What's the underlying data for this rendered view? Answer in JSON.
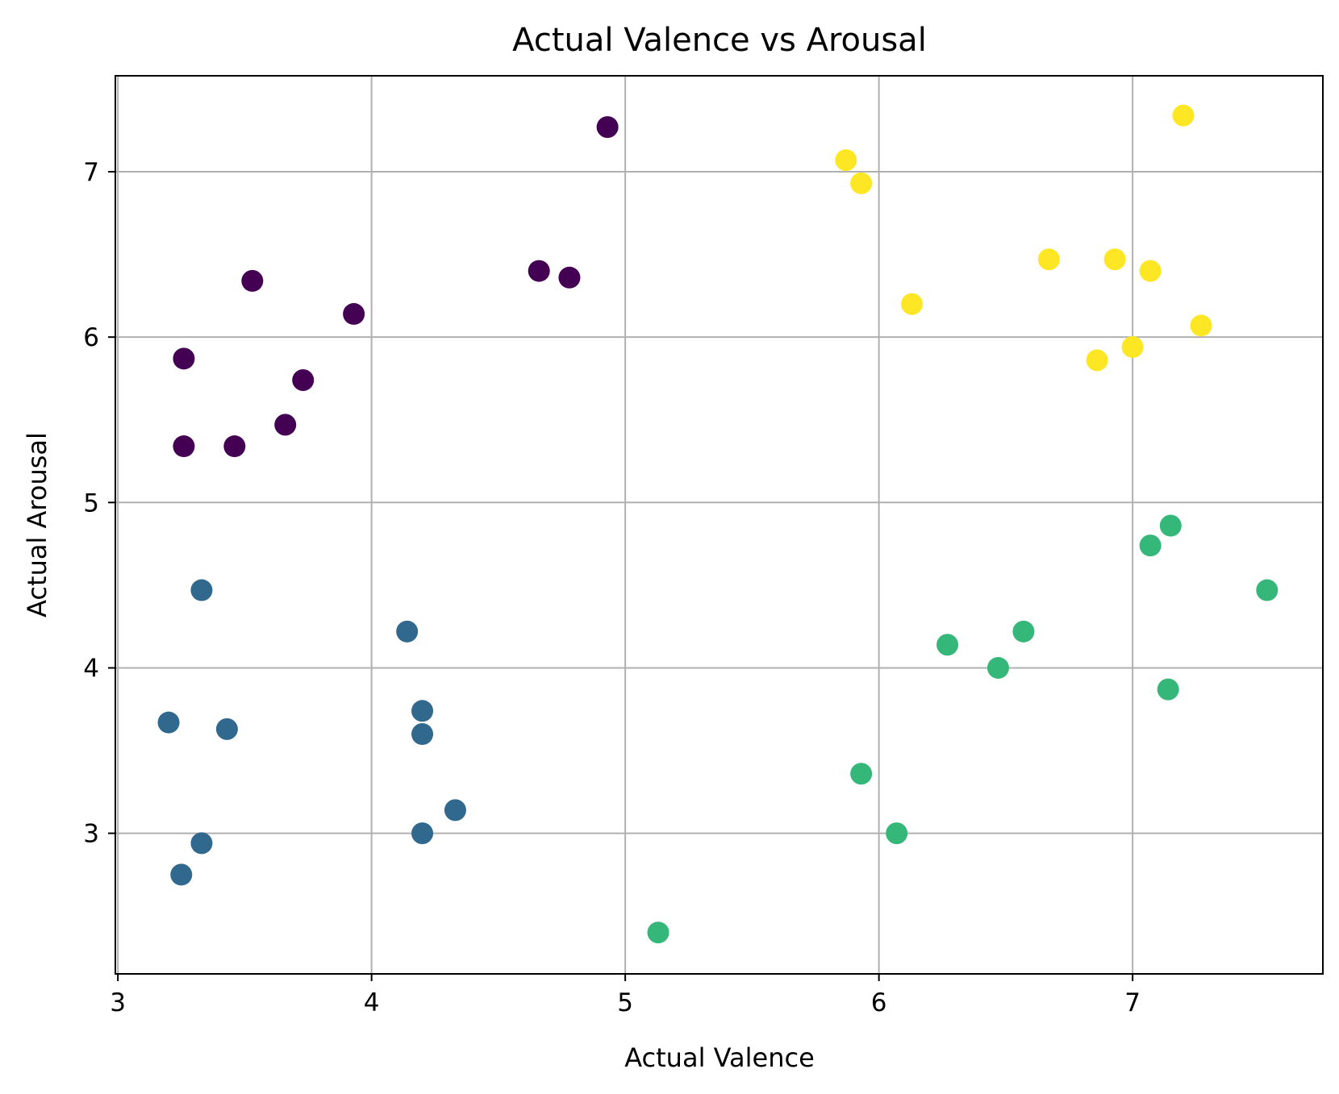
{
  "chart_data": {
    "type": "scatter",
    "title": "Actual Valence vs Arousal",
    "xlabel": "Actual Valence",
    "ylabel": "Actual Arousal",
    "xlim": [
      2.99,
      7.75
    ],
    "ylim": [
      2.15,
      7.58
    ],
    "xticks": [
      3,
      4,
      5,
      6,
      7
    ],
    "yticks": [
      3,
      4,
      5,
      6,
      7
    ],
    "grid": true,
    "legend": "none",
    "series": [
      {
        "color": "#440154",
        "points": [
          [
            4.93,
            7.27
          ],
          [
            3.53,
            6.34
          ],
          [
            3.93,
            6.14
          ],
          [
            4.66,
            6.4
          ],
          [
            4.78,
            6.36
          ],
          [
            3.26,
            5.87
          ],
          [
            3.73,
            5.74
          ],
          [
            3.66,
            5.47
          ],
          [
            3.26,
            5.34
          ],
          [
            3.46,
            5.34
          ]
        ]
      },
      {
        "color": "#31688e",
        "points": [
          [
            3.33,
            4.47
          ],
          [
            4.14,
            4.22
          ],
          [
            4.2,
            3.74
          ],
          [
            4.2,
            3.6
          ],
          [
            3.2,
            3.67
          ],
          [
            3.43,
            3.63
          ],
          [
            4.33,
            3.14
          ],
          [
            4.2,
            3.0
          ],
          [
            3.33,
            2.94
          ],
          [
            3.25,
            2.75
          ]
        ]
      },
      {
        "color": "#35b779",
        "points": [
          [
            7.15,
            4.86
          ],
          [
            7.07,
            4.74
          ],
          [
            7.53,
            4.47
          ],
          [
            6.57,
            4.22
          ],
          [
            6.27,
            4.14
          ],
          [
            6.47,
            4.0
          ],
          [
            7.14,
            3.87
          ],
          [
            5.93,
            3.36
          ],
          [
            6.07,
            3.0
          ],
          [
            5.13,
            2.4
          ]
        ]
      },
      {
        "color": "#fde725",
        "points": [
          [
            7.2,
            7.34
          ],
          [
            5.87,
            7.07
          ],
          [
            5.93,
            6.93
          ],
          [
            6.67,
            6.47
          ],
          [
            6.93,
            6.47
          ],
          [
            7.07,
            6.4
          ],
          [
            6.13,
            6.2
          ],
          [
            7.27,
            6.07
          ],
          [
            7.0,
            5.94
          ],
          [
            6.86,
            5.86
          ]
        ]
      }
    ]
  }
}
